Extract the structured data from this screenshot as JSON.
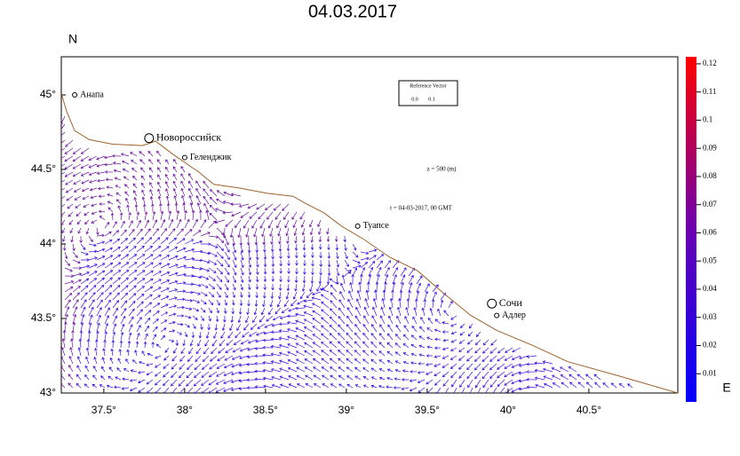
{
  "chart_data": {
    "type": "vector-map",
    "title": "04.03.2017",
    "north_label": "N",
    "east_label": "E",
    "depth_label": "z = 500 (m)",
    "time_label": "t = 04-03-2017, 00 GMT",
    "reference_vector": {
      "title": "Reference Vector",
      "labels": [
        "0.0",
        "0.1"
      ],
      "color": "#ff0000"
    },
    "xlim": [
      37.237,
      41.05
    ],
    "ylim": [
      43,
      45.256
    ],
    "xticks": [
      {
        "value": 37.5,
        "label": "37.5°"
      },
      {
        "value": 38,
        "label": "38°"
      },
      {
        "value": 38.5,
        "label": "38.5°"
      },
      {
        "value": 39,
        "label": "39°"
      },
      {
        "value": 39.5,
        "label": "39.5°"
      },
      {
        "value": 40,
        "label": "40°"
      },
      {
        "value": 40.5,
        "label": "40.5°"
      }
    ],
    "yticks": [
      {
        "value": 43,
        "label": "43°"
      },
      {
        "value": 43.5,
        "label": "43.5°"
      },
      {
        "value": 44,
        "label": "44°"
      },
      {
        "value": 44.5,
        "label": "44.5°"
      },
      {
        "value": 45,
        "label": "45°"
      }
    ],
    "coast": {
      "color": "#a0622d",
      "lon": [
        37.24,
        37.27,
        37.32,
        37.41,
        37.55,
        37.74,
        37.82,
        37.93,
        38.09,
        38.18,
        38.34,
        38.51,
        38.67,
        38.75,
        38.86,
        38.97,
        39.11,
        39.27,
        39.44,
        39.6,
        39.77,
        39.93,
        40.15,
        40.37,
        40.7,
        41.05
      ],
      "lat": [
        45.0,
        44.89,
        44.76,
        44.7,
        44.67,
        44.66,
        44.69,
        44.6,
        44.48,
        44.4,
        44.375,
        44.34,
        44.32,
        44.27,
        44.21,
        44.12,
        44.03,
        43.91,
        43.82,
        43.67,
        43.52,
        43.42,
        43.32,
        43.21,
        43.11,
        43.0
      ]
    },
    "cities": [
      {
        "name": "Анапа",
        "lon": 37.32,
        "lat": 45.0,
        "major": false
      },
      {
        "name": "Новороссийск",
        "lon": 37.78,
        "lat": 44.71,
        "major": true
      },
      {
        "name": "Геленджик",
        "lon": 38.0,
        "lat": 44.58,
        "major": false
      },
      {
        "name": "Туапсе",
        "lon": 39.07,
        "lat": 44.12,
        "major": false
      },
      {
        "name": "Сочи",
        "lon": 39.9,
        "lat": 43.6,
        "major": true
      },
      {
        "name": "Адлер",
        "lon": 39.93,
        "lat": 43.52,
        "major": false
      }
    ],
    "colorbar": {
      "clim": [
        0,
        0.1225
      ],
      "ticks": [
        0.01,
        0.02,
        0.03,
        0.04,
        0.05,
        0.06,
        0.07,
        0.08,
        0.09,
        0.1,
        0.11,
        0.12
      ],
      "colors": [
        "#0000ff",
        "#6a00b0",
        "#ff0000"
      ]
    }
  }
}
